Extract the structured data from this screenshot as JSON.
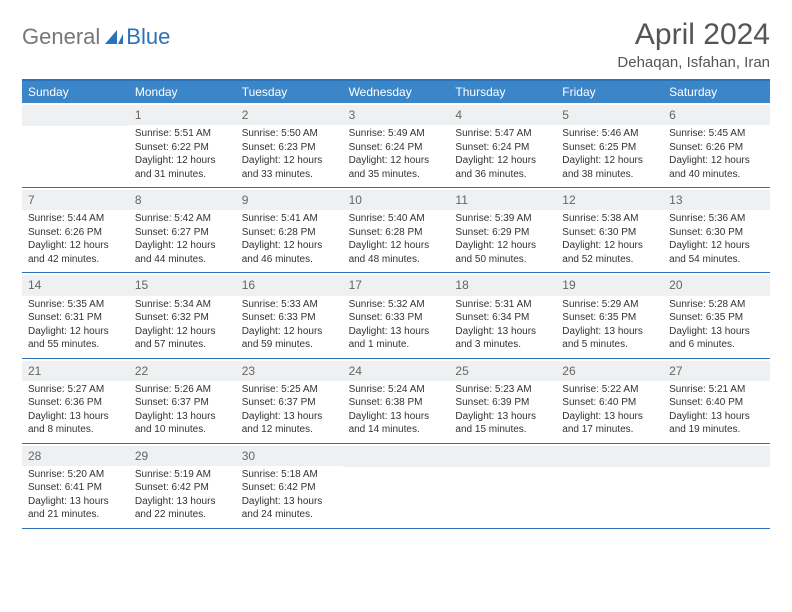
{
  "logo": {
    "text1": "General",
    "text2": "Blue"
  },
  "title": "April 2024",
  "location": "Dehaqan, Isfahan, Iran",
  "colors": {
    "header_bg": "#3b86c8",
    "border": "#2b72b8",
    "daynum_bg": "#eef0f1",
    "text": "#333333",
    "title_color": "#555555"
  },
  "weekdays": [
    "Sunday",
    "Monday",
    "Tuesday",
    "Wednesday",
    "Thursday",
    "Friday",
    "Saturday"
  ],
  "weeks": [
    [
      null,
      {
        "n": "1",
        "sr": "Sunrise: 5:51 AM",
        "ss": "Sunset: 6:22 PM",
        "d1": "Daylight: 12 hours",
        "d2": "and 31 minutes."
      },
      {
        "n": "2",
        "sr": "Sunrise: 5:50 AM",
        "ss": "Sunset: 6:23 PM",
        "d1": "Daylight: 12 hours",
        "d2": "and 33 minutes."
      },
      {
        "n": "3",
        "sr": "Sunrise: 5:49 AM",
        "ss": "Sunset: 6:24 PM",
        "d1": "Daylight: 12 hours",
        "d2": "and 35 minutes."
      },
      {
        "n": "4",
        "sr": "Sunrise: 5:47 AM",
        "ss": "Sunset: 6:24 PM",
        "d1": "Daylight: 12 hours",
        "d2": "and 36 minutes."
      },
      {
        "n": "5",
        "sr": "Sunrise: 5:46 AM",
        "ss": "Sunset: 6:25 PM",
        "d1": "Daylight: 12 hours",
        "d2": "and 38 minutes."
      },
      {
        "n": "6",
        "sr": "Sunrise: 5:45 AM",
        "ss": "Sunset: 6:26 PM",
        "d1": "Daylight: 12 hours",
        "d2": "and 40 minutes."
      }
    ],
    [
      {
        "n": "7",
        "sr": "Sunrise: 5:44 AM",
        "ss": "Sunset: 6:26 PM",
        "d1": "Daylight: 12 hours",
        "d2": "and 42 minutes."
      },
      {
        "n": "8",
        "sr": "Sunrise: 5:42 AM",
        "ss": "Sunset: 6:27 PM",
        "d1": "Daylight: 12 hours",
        "d2": "and 44 minutes."
      },
      {
        "n": "9",
        "sr": "Sunrise: 5:41 AM",
        "ss": "Sunset: 6:28 PM",
        "d1": "Daylight: 12 hours",
        "d2": "and 46 minutes."
      },
      {
        "n": "10",
        "sr": "Sunrise: 5:40 AM",
        "ss": "Sunset: 6:28 PM",
        "d1": "Daylight: 12 hours",
        "d2": "and 48 minutes."
      },
      {
        "n": "11",
        "sr": "Sunrise: 5:39 AM",
        "ss": "Sunset: 6:29 PM",
        "d1": "Daylight: 12 hours",
        "d2": "and 50 minutes."
      },
      {
        "n": "12",
        "sr": "Sunrise: 5:38 AM",
        "ss": "Sunset: 6:30 PM",
        "d1": "Daylight: 12 hours",
        "d2": "and 52 minutes."
      },
      {
        "n": "13",
        "sr": "Sunrise: 5:36 AM",
        "ss": "Sunset: 6:30 PM",
        "d1": "Daylight: 12 hours",
        "d2": "and 54 minutes."
      }
    ],
    [
      {
        "n": "14",
        "sr": "Sunrise: 5:35 AM",
        "ss": "Sunset: 6:31 PM",
        "d1": "Daylight: 12 hours",
        "d2": "and 55 minutes."
      },
      {
        "n": "15",
        "sr": "Sunrise: 5:34 AM",
        "ss": "Sunset: 6:32 PM",
        "d1": "Daylight: 12 hours",
        "d2": "and 57 minutes."
      },
      {
        "n": "16",
        "sr": "Sunrise: 5:33 AM",
        "ss": "Sunset: 6:33 PM",
        "d1": "Daylight: 12 hours",
        "d2": "and 59 minutes."
      },
      {
        "n": "17",
        "sr": "Sunrise: 5:32 AM",
        "ss": "Sunset: 6:33 PM",
        "d1": "Daylight: 13 hours",
        "d2": "and 1 minute."
      },
      {
        "n": "18",
        "sr": "Sunrise: 5:31 AM",
        "ss": "Sunset: 6:34 PM",
        "d1": "Daylight: 13 hours",
        "d2": "and 3 minutes."
      },
      {
        "n": "19",
        "sr": "Sunrise: 5:29 AM",
        "ss": "Sunset: 6:35 PM",
        "d1": "Daylight: 13 hours",
        "d2": "and 5 minutes."
      },
      {
        "n": "20",
        "sr": "Sunrise: 5:28 AM",
        "ss": "Sunset: 6:35 PM",
        "d1": "Daylight: 13 hours",
        "d2": "and 6 minutes."
      }
    ],
    [
      {
        "n": "21",
        "sr": "Sunrise: 5:27 AM",
        "ss": "Sunset: 6:36 PM",
        "d1": "Daylight: 13 hours",
        "d2": "and 8 minutes."
      },
      {
        "n": "22",
        "sr": "Sunrise: 5:26 AM",
        "ss": "Sunset: 6:37 PM",
        "d1": "Daylight: 13 hours",
        "d2": "and 10 minutes."
      },
      {
        "n": "23",
        "sr": "Sunrise: 5:25 AM",
        "ss": "Sunset: 6:37 PM",
        "d1": "Daylight: 13 hours",
        "d2": "and 12 minutes."
      },
      {
        "n": "24",
        "sr": "Sunrise: 5:24 AM",
        "ss": "Sunset: 6:38 PM",
        "d1": "Daylight: 13 hours",
        "d2": "and 14 minutes."
      },
      {
        "n": "25",
        "sr": "Sunrise: 5:23 AM",
        "ss": "Sunset: 6:39 PM",
        "d1": "Daylight: 13 hours",
        "d2": "and 15 minutes."
      },
      {
        "n": "26",
        "sr": "Sunrise: 5:22 AM",
        "ss": "Sunset: 6:40 PM",
        "d1": "Daylight: 13 hours",
        "d2": "and 17 minutes."
      },
      {
        "n": "27",
        "sr": "Sunrise: 5:21 AM",
        "ss": "Sunset: 6:40 PM",
        "d1": "Daylight: 13 hours",
        "d2": "and 19 minutes."
      }
    ],
    [
      {
        "n": "28",
        "sr": "Sunrise: 5:20 AM",
        "ss": "Sunset: 6:41 PM",
        "d1": "Daylight: 13 hours",
        "d2": "and 21 minutes."
      },
      {
        "n": "29",
        "sr": "Sunrise: 5:19 AM",
        "ss": "Sunset: 6:42 PM",
        "d1": "Daylight: 13 hours",
        "d2": "and 22 minutes."
      },
      {
        "n": "30",
        "sr": "Sunrise: 5:18 AM",
        "ss": "Sunset: 6:42 PM",
        "d1": "Daylight: 13 hours",
        "d2": "and 24 minutes."
      },
      null,
      null,
      null,
      null
    ]
  ]
}
